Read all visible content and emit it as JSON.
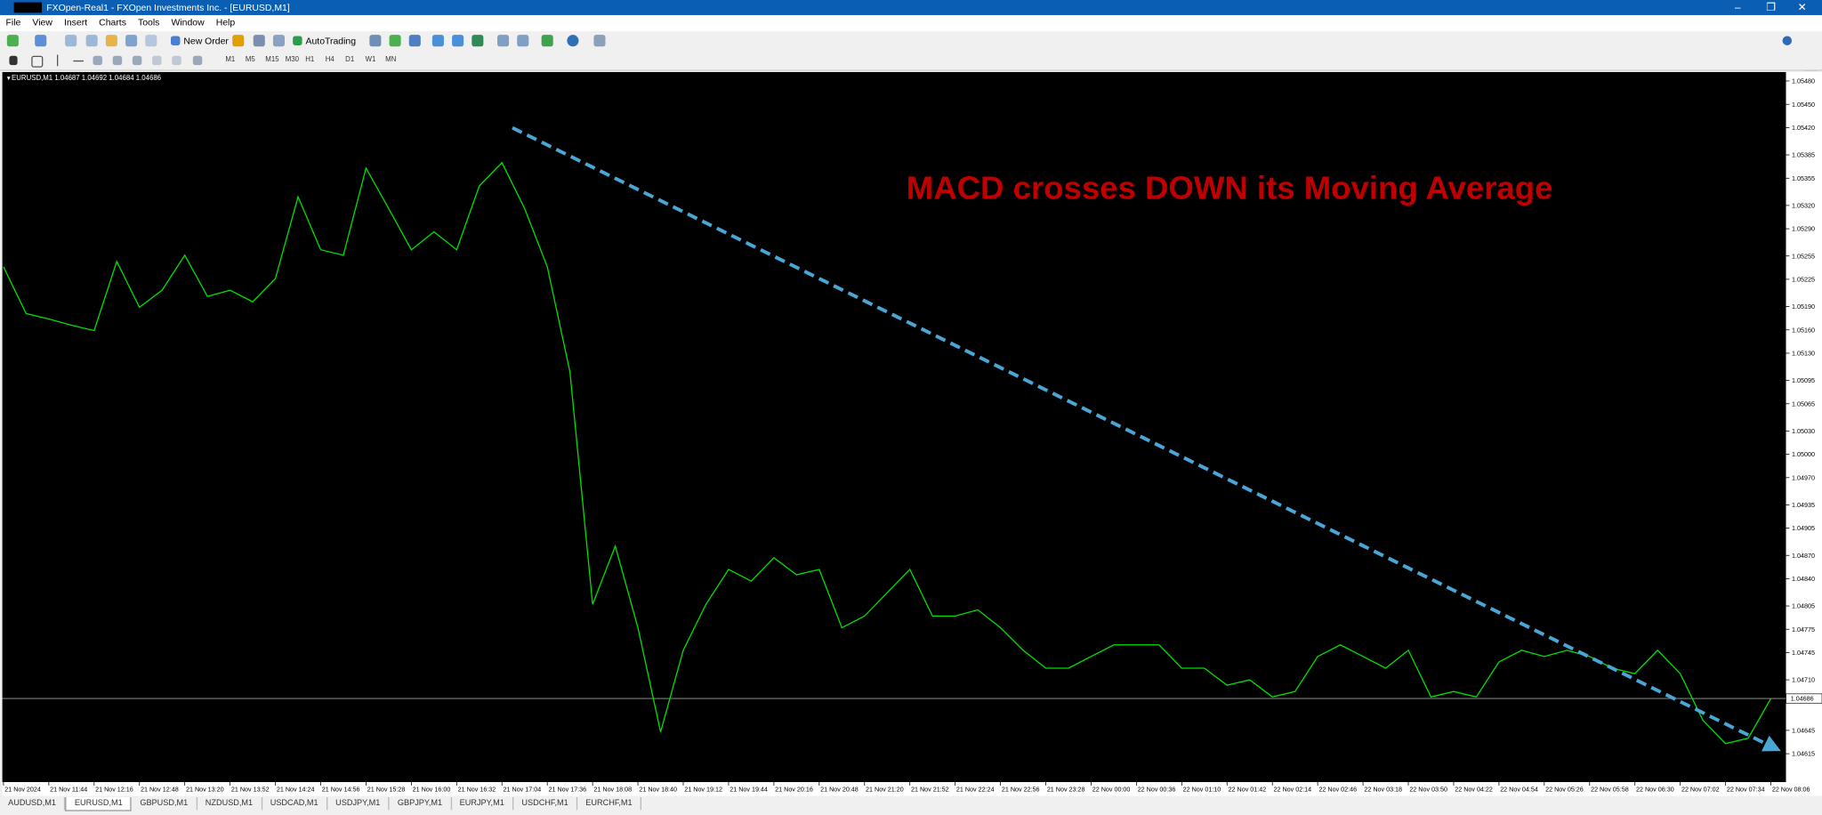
{
  "window": {
    "title": "FXOpen-Real1 - FXOpen Investments Inc. - [EURUSD,M1]"
  },
  "menu": [
    "File",
    "View",
    "Insert",
    "Charts",
    "Tools",
    "Window",
    "Help"
  ],
  "toolbar": {
    "new_order": "New Order",
    "autotrading": "AutoTrading",
    "timeframes": [
      "M1",
      "M5",
      "M15",
      "M30",
      "H1",
      "H4",
      "D1",
      "W1",
      "MN"
    ],
    "notifications": "1"
  },
  "chart_data": {
    "type": "line",
    "header": "EURUSD,M1  1.04687 1.04692 1.04684 1.04686",
    "annotation": "MACD crosses DOWN its Moving Average",
    "x": [
      "21 Nov 2024",
      null,
      "21 Nov 11:44",
      null,
      "21 Nov 12:16",
      null,
      "21 Nov 12:48",
      null,
      "21 Nov 13:20",
      null,
      "21 Nov 13:52",
      null,
      "21 Nov 14:24",
      null,
      "21 Nov 14:56",
      null,
      "21 Nov 15:28",
      null,
      "21 Nov 16:00",
      null,
      "21 Nov 16:32",
      null,
      "21 Nov 17:04",
      null,
      "21 Nov 17:36",
      null,
      "21 Nov 18:08",
      null,
      "21 Nov 18:40",
      null,
      "21 Nov 19:12",
      null,
      "21 Nov 19:44",
      null,
      "21 Nov 20:16",
      null,
      "21 Nov 20:48",
      null,
      "21 Nov 21:20",
      null,
      "21 Nov 21:52",
      null,
      "21 Nov 22:24",
      null,
      "21 Nov 22:56",
      null,
      "21 Nov 23:28",
      null,
      "22 Nov 00:00",
      null,
      "22 Nov 00:36",
      null,
      "22 Nov 01:10",
      null,
      "22 Nov 01:42",
      null,
      "22 Nov 02:14",
      null,
      "22 Nov 02:46",
      null,
      "22 Nov 03:18",
      null,
      "22 Nov 03:50",
      null,
      "22 Nov 04:22",
      null,
      "22 Nov 04:54",
      null,
      "22 Nov 05:26",
      null,
      "22 Nov 05:58",
      null,
      "22 Nov 06:30",
      null,
      "22 Nov 07:02",
      null,
      "22 Nov 07:34",
      null,
      "22 Nov 08:06"
    ],
    "values": [
      1.05241,
      1.05181,
      1.05174,
      1.05166,
      1.05159,
      1.05248,
      1.05189,
      1.05211,
      1.05256,
      1.05203,
      1.05211,
      1.05196,
      1.05226,
      1.05331,
      1.05263,
      1.05256,
      1.05368,
      1.05316,
      1.05263,
      1.05286,
      1.05263,
      1.05345,
      1.05375,
      1.05316,
      1.05241,
      1.05106,
      1.04807,
      1.04882,
      1.04777,
      1.04643,
      1.04748,
      1.04807,
      1.04852,
      1.04837,
      1.04867,
      1.04845,
      1.04852,
      1.04777,
      1.04792,
      1.04822,
      1.04852,
      1.04792,
      1.04792,
      1.048,
      1.04777,
      1.04748,
      1.04725,
      1.04725,
      1.0474,
      1.04755,
      1.04755,
      1.04755,
      1.04725,
      1.04725,
      1.04703,
      1.0471,
      1.04688,
      1.04695,
      1.0474,
      1.04755,
      1.0474,
      1.04725,
      1.04748,
      1.04688,
      1.04695,
      1.04688,
      1.04733,
      1.04748,
      1.0474,
      1.04748,
      1.0474,
      1.04725,
      1.04718,
      1.04748,
      1.04718,
      1.04658,
      1.04628,
      1.04635,
      1.04686
    ],
    "color": "#00e000",
    "bid_line": 1.04686,
    "ylim": [
      1.0458,
      1.0549
    ],
    "yticks": [
      {
        "value": 1.0548,
        "label": "1.05480"
      },
      {
        "value": 1.0545,
        "label": "1.05450"
      },
      {
        "value": 1.0542,
        "label": "1.05420"
      },
      {
        "value": 1.05385,
        "label": "1.05385"
      },
      {
        "value": 1.05355,
        "label": "1.05355"
      },
      {
        "value": 1.0532,
        "label": "1.05320"
      },
      {
        "value": 1.0529,
        "label": "1.05290"
      },
      {
        "value": 1.05255,
        "label": "1.05255"
      },
      {
        "value": 1.05225,
        "label": "1.05225"
      },
      {
        "value": 1.0519,
        "label": "1.05190"
      },
      {
        "value": 1.0516,
        "label": "1.05160"
      },
      {
        "value": 1.0513,
        "label": "1.05130"
      },
      {
        "value": 1.05095,
        "label": "1.05095"
      },
      {
        "value": 1.05065,
        "label": "1.05065"
      },
      {
        "value": 1.0503,
        "label": "1.05030"
      },
      {
        "value": 1.05,
        "label": "1.05000"
      },
      {
        "value": 1.0497,
        "label": "1.04970"
      },
      {
        "value": 1.04935,
        "label": "1.04935"
      },
      {
        "value": 1.04905,
        "label": "1.04905"
      },
      {
        "value": 1.0487,
        "label": "1.04870"
      },
      {
        "value": 1.0484,
        "label": "1.04840"
      },
      {
        "value": 1.04805,
        "label": "1.04805"
      },
      {
        "value": 1.04775,
        "label": "1.04775"
      },
      {
        "value": 1.04745,
        "label": "1.04745"
      },
      {
        "value": 1.0471,
        "label": "1.04710"
      },
      {
        "value": 1.04645,
        "label": "1.04645"
      },
      {
        "value": 1.04615,
        "label": "1.04615"
      }
    ]
  },
  "tabs": [
    "AUDUSD,M1",
    "EURUSD,M1",
    "GBPUSD,M1",
    "NZDUSD,M1",
    "USDCAD,M1",
    "USDJPY,M1",
    "GBPJPY,M1",
    "EURJPY,M1",
    "USDCHF,M1",
    "EURCHF,M1"
  ]
}
